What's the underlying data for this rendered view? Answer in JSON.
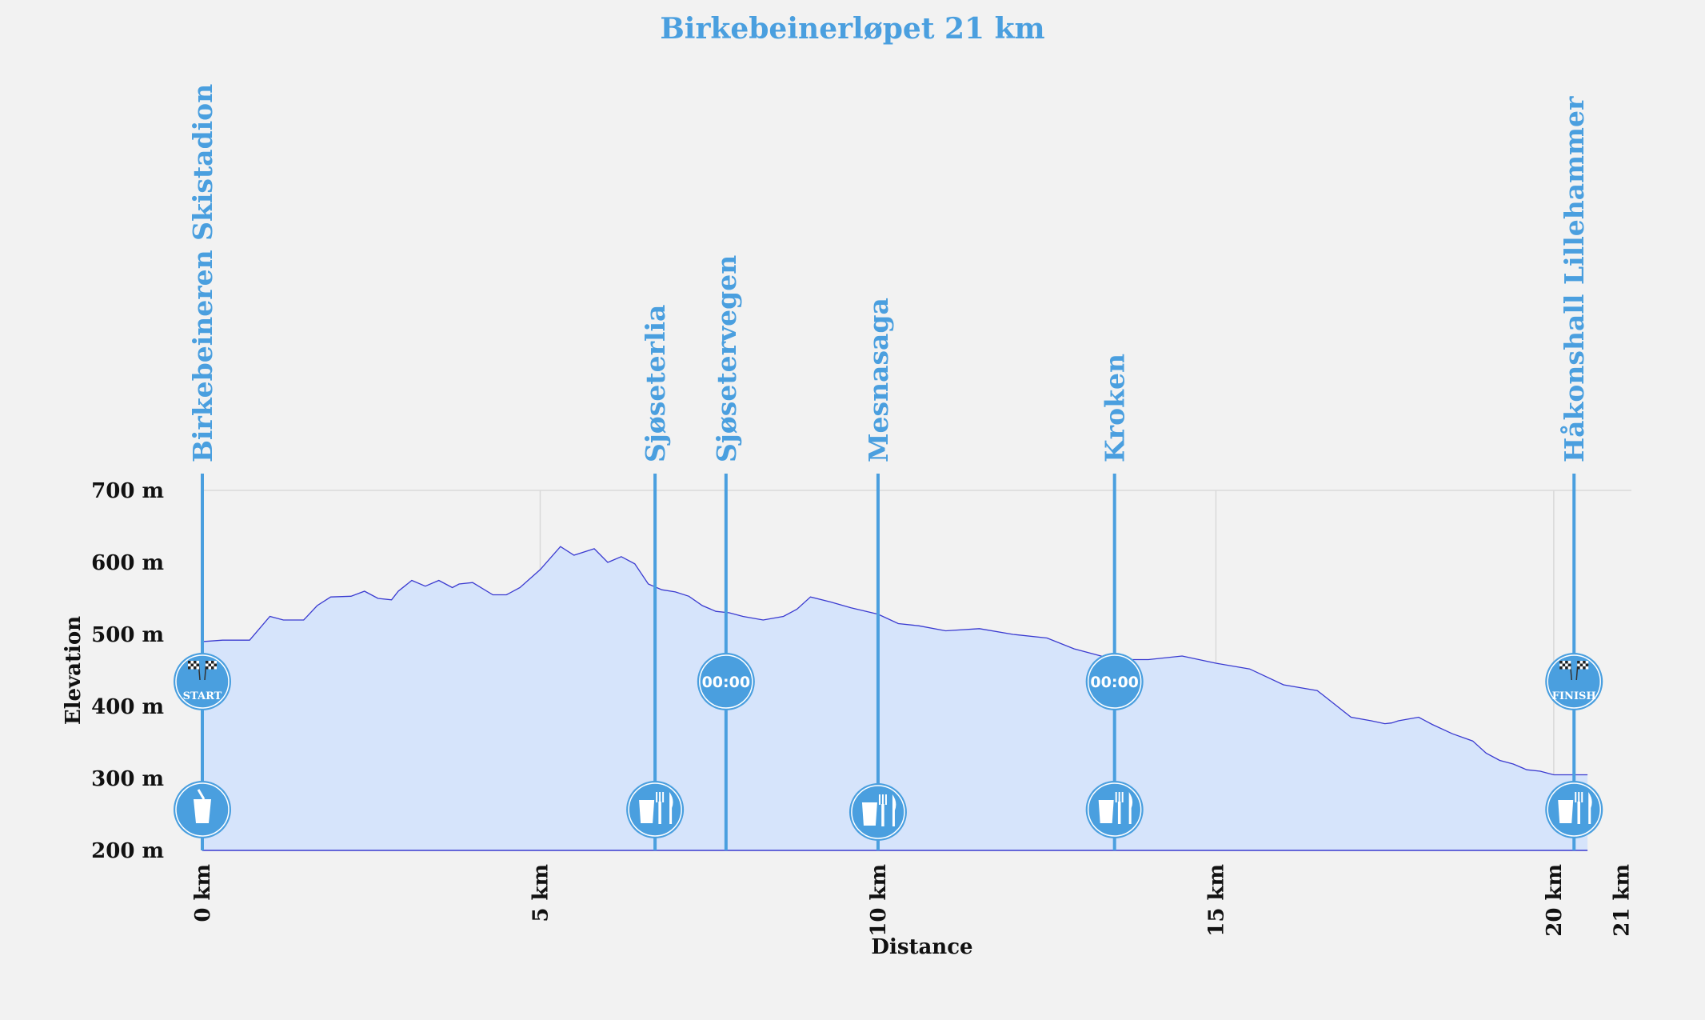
{
  "chart_data": {
    "type": "area",
    "title": "Birkebeinerløpet 21 km",
    "xlabel": "Distance",
    "ylabel": "Elevation",
    "xlim": [
      0,
      21.25
    ],
    "ylim": [
      200,
      700
    ],
    "y_ticks": [
      {
        "value": 200,
        "label": "200 m"
      },
      {
        "value": 300,
        "label": "300 m"
      },
      {
        "value": 400,
        "label": "400 m"
      },
      {
        "value": 500,
        "label": "500 m"
      },
      {
        "value": 600,
        "label": "600 m"
      },
      {
        "value": 700,
        "label": "700 m"
      }
    ],
    "x_ticks": [
      {
        "value": 0,
        "label": "0 km"
      },
      {
        "value": 5,
        "label": "5 km"
      },
      {
        "value": 10,
        "label": "10 km"
      },
      {
        "value": 15,
        "label": "15 km"
      },
      {
        "value": 20,
        "label": "20 km"
      },
      {
        "value": 21,
        "label": "21 km"
      }
    ],
    "grid": true,
    "colors": {
      "fill": "#d6e4fb",
      "line": "#3a3ad0",
      "accent": "#4a9fdf",
      "grid": "#d9d9d9"
    },
    "profile": {
      "x": [
        0,
        0.3,
        0.7,
        1.0,
        1.2,
        1.5,
        1.7,
        1.9,
        2.2,
        2.4,
        2.6,
        2.8,
        2.9,
        3.1,
        3.3,
        3.5,
        3.7,
        3.8,
        4.0,
        4.3,
        4.5,
        4.7,
        5.0,
        5.3,
        5.5,
        5.8,
        6.0,
        6.2,
        6.4,
        6.6,
        6.8,
        7.0,
        7.2,
        7.4,
        7.6,
        7.8,
        8.0,
        8.3,
        8.6,
        8.8,
        9.0,
        9.3,
        9.6,
        10.0,
        10.3,
        10.6,
        11.0,
        11.5,
        12.0,
        12.5,
        12.9,
        13.3,
        13.6,
        14.0,
        14.5,
        15.0,
        15.5,
        16.0,
        16.5,
        17.0,
        17.3,
        17.5,
        17.6,
        17.7,
        18.0,
        18.2,
        18.5,
        18.8,
        19.0,
        19.2,
        19.4,
        19.6,
        19.8,
        20.0,
        20.2,
        20.5
      ],
      "y": [
        490,
        492,
        492,
        525,
        520,
        520,
        540,
        552,
        553,
        560,
        550,
        548,
        560,
        575,
        567,
        575,
        565,
        570,
        572,
        555,
        555,
        565,
        590,
        622,
        610,
        619,
        600,
        608,
        598,
        570,
        562,
        559,
        553,
        540,
        532,
        530,
        525,
        520,
        525,
        535,
        552,
        545,
        537,
        528,
        515,
        512,
        505,
        508,
        500,
        495,
        480,
        470,
        465,
        465,
        470,
        460,
        452,
        430,
        422,
        385,
        380,
        376,
        377,
        380,
        385,
        375,
        362,
        352,
        335,
        325,
        320,
        312,
        310,
        305,
        305,
        305
      ]
    },
    "checkpoints": [
      {
        "name": "Birkebeineren Skistadion",
        "km": 0,
        "badge": "start",
        "badge_text": "START",
        "service": "drink"
      },
      {
        "name": "Sjøseterlia",
        "km": 6.7,
        "service": "food"
      },
      {
        "name": "Sjøsetervegen",
        "km": 7.75,
        "timer": "00:00"
      },
      {
        "name": "Mesnasaga",
        "km": 10.0,
        "service": "food"
      },
      {
        "name": "Kroken",
        "km": 13.5,
        "timer": "00:00",
        "service": "food"
      },
      {
        "name": "Håkonshall Lillehammer",
        "km": 20.3,
        "badge": "finish",
        "badge_text": "FINISH",
        "service": "food"
      }
    ]
  }
}
